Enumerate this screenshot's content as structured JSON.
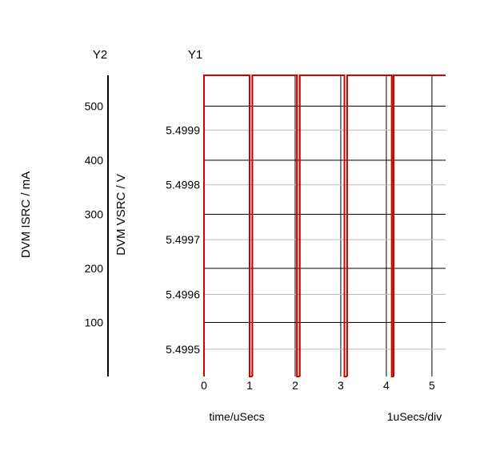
{
  "chart_data": {
    "type": "line",
    "y2_header": "Y2",
    "y1_header": "Y1",
    "y2_label": "DVM ISRC / mA",
    "y1_label": "DVM VSRC / V",
    "xlabel": "time/uSecs",
    "x_scale_note": "1uSecs/div",
    "xlim": [
      0,
      5.3
    ],
    "x_ticks": [
      "0",
      "1",
      "2",
      "3",
      "4",
      "5"
    ],
    "x_tick_values": [
      0,
      1,
      2,
      3,
      4,
      5
    ],
    "y1_ticks": [
      "5.4999",
      "5.4998",
      "5.4997",
      "5.4996",
      "5.4995"
    ],
    "y1_tick_values": [
      5.4999,
      5.4998,
      5.4997,
      5.4996,
      5.4995
    ],
    "y1_lim": [
      5.49945,
      5.5
    ],
    "y2_ticks": [
      "500",
      "400",
      "300",
      "200",
      "100"
    ],
    "y2_tick_values": [
      500,
      400,
      300,
      200,
      100
    ],
    "y2_lim": [
      0,
      557
    ],
    "grid": true,
    "series": [
      {
        "axis": "y1",
        "color": "#d40000",
        "rising_edges": [
          0.0,
          1.06,
          2.1,
          3.14,
          4.16
        ],
        "falling_edges": [
          1.0,
          2.04,
          3.08,
          4.12
        ],
        "high_value": 5.5,
        "low_value": 5.49945
      },
      {
        "axis": "y2",
        "color": "#008000",
        "rising_edges": [
          0.0,
          1.06,
          2.1,
          3.14,
          4.16
        ],
        "falling_edges": [
          1.0,
          2.04,
          3.08,
          4.12
        ],
        "high_value": 557,
        "low_value": 0
      }
    ]
  }
}
